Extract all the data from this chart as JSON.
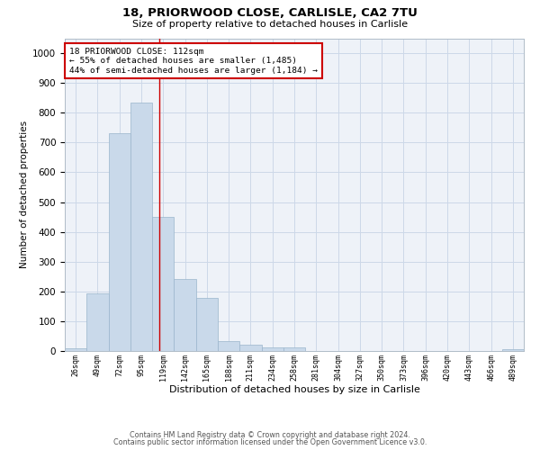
{
  "title_line1": "18, PRIORWOOD CLOSE, CARLISLE, CA2 7TU",
  "title_line2": "Size of property relative to detached houses in Carlisle",
  "xlabel": "Distribution of detached houses by size in Carlisle",
  "ylabel": "Number of detached properties",
  "bar_color": "#c9d9ea",
  "bar_edge_color": "#9ab5cc",
  "grid_color": "#ccd8e8",
  "background_color": "#eef2f8",
  "annotation_text": "18 PRIORWOOD CLOSE: 112sqm\n← 55% of detached houses are smaller (1,485)\n44% of semi-detached houses are larger (1,184) →",
  "vline_x": 112,
  "vline_color": "#cc0000",
  "categories": [
    "26sqm",
    "49sqm",
    "72sqm",
    "95sqm",
    "119sqm",
    "142sqm",
    "165sqm",
    "188sqm",
    "211sqm",
    "234sqm",
    "258sqm",
    "281sqm",
    "304sqm",
    "327sqm",
    "350sqm",
    "373sqm",
    "396sqm",
    "420sqm",
    "443sqm",
    "466sqm",
    "489sqm"
  ],
  "bin_edges": [
    12.5,
    35.5,
    58.5,
    81.5,
    104.5,
    127.5,
    150.5,
    173.5,
    196.5,
    219.5,
    242.5,
    265.5,
    288.5,
    311.5,
    334.5,
    357.5,
    380.5,
    403.5,
    426.5,
    449.5,
    472.5,
    495.5
  ],
  "values": [
    10,
    193,
    730,
    833,
    450,
    242,
    178,
    32,
    22,
    12,
    13,
    0,
    0,
    0,
    0,
    0,
    0,
    0,
    0,
    0,
    7
  ],
  "ylim": [
    0,
    1050
  ],
  "yticks": [
    0,
    100,
    200,
    300,
    400,
    500,
    600,
    700,
    800,
    900,
    1000
  ],
  "footer_line1": "Contains HM Land Registry data © Crown copyright and database right 2024.",
  "footer_line2": "Contains public sector information licensed under the Open Government Licence v3.0."
}
